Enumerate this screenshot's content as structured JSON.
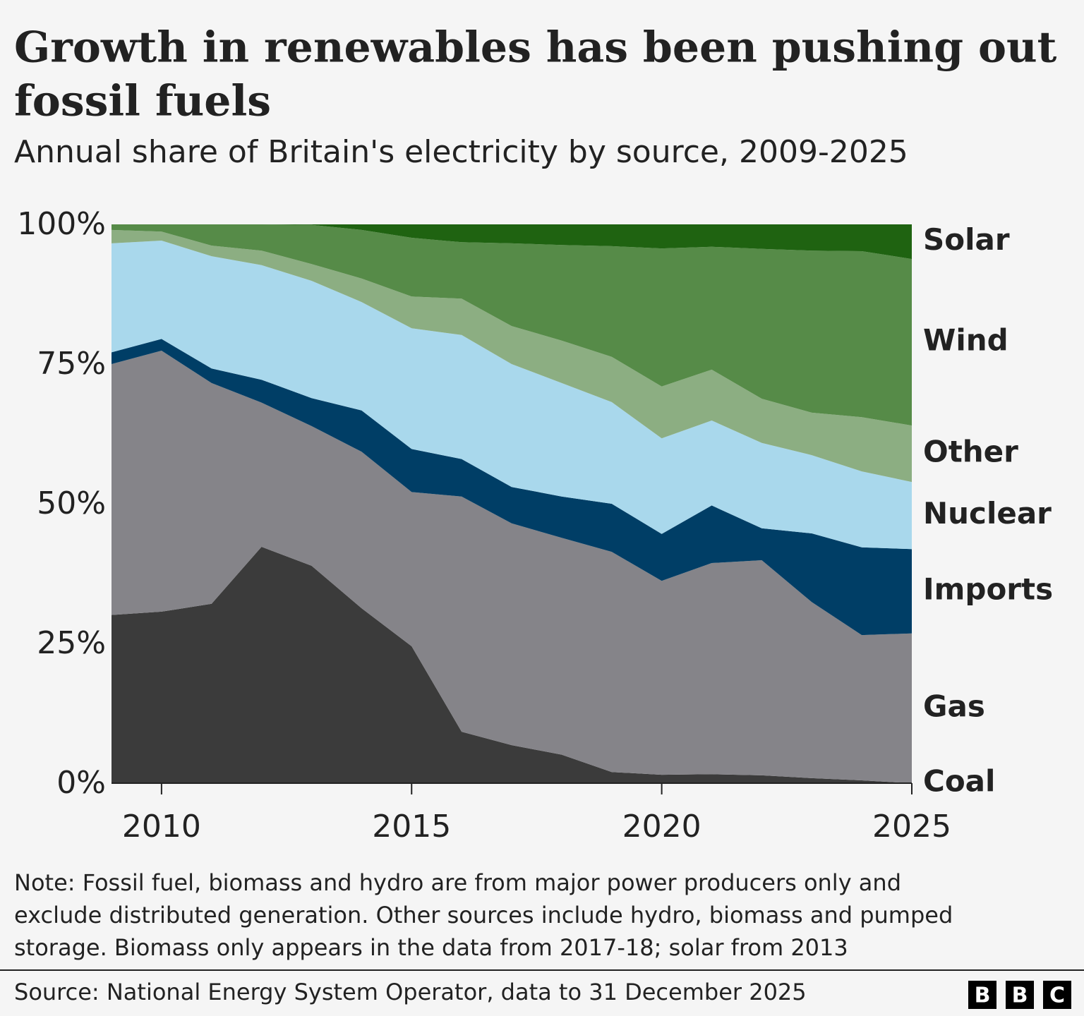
{
  "chart_data": {
    "type": "stacked_area",
    "title": [
      "Growth in renewables has been pushing out",
      "fossil fuels"
    ],
    "subtitle": "Annual share of Britain's electricity by source, 2009-2025",
    "x": [
      2009,
      2010,
      2011,
      2012,
      2013,
      2014,
      2015,
      2016,
      2017,
      2018,
      2019,
      2020,
      2021,
      2022,
      2023,
      2024,
      2025
    ],
    "xlim": [
      2009,
      2025
    ],
    "xticks": [
      2010,
      2015,
      2020,
      2025
    ],
    "ylim": [
      0,
      100
    ],
    "yticks": [
      {
        "value": 0,
        "label": "0%"
      },
      {
        "value": 25,
        "label": "25%"
      },
      {
        "value": 50,
        "label": "50%"
      },
      {
        "value": 75,
        "label": "75%"
      },
      {
        "value": 100,
        "label": "100%"
      }
    ],
    "series": [
      {
        "name": "Coal",
        "color": "#3b3b3b",
        "values": [
          30.1,
          30.7,
          32.1,
          42.3,
          38.9,
          31.3,
          24.5,
          9.2,
          6.8,
          5.1,
          2.0,
          1.5,
          1.6,
          1.4,
          0.9,
          0.5,
          0
        ]
      },
      {
        "name": "Gas",
        "color": "#858489",
        "values": [
          44.9,
          46.7,
          39.5,
          25.8,
          25.0,
          28.0,
          27.6,
          42.1,
          39.7,
          38.8,
          39.4,
          34.7,
          37.8,
          38.5,
          31.5,
          26.0,
          26.8
        ]
      },
      {
        "name": "Imports",
        "color": "#003e66",
        "values": [
          2.1,
          2.1,
          2.6,
          4.1,
          5.0,
          7.4,
          7.7,
          6.7,
          6.5,
          7.4,
          8.6,
          8.4,
          10.3,
          5.7,
          12.3,
          15.7,
          15.1
        ]
      },
      {
        "name": "Nuclear",
        "color": "#a9d8ec",
        "values": [
          19.5,
          17.6,
          20.1,
          20.5,
          21.0,
          19.4,
          21.6,
          22.2,
          22.0,
          20.3,
          18.2,
          17.1,
          15.2,
          15.3,
          14.0,
          13.6,
          12.0
        ]
      },
      {
        "name": "Other",
        "color": "#8cae82",
        "values": [
          2.4,
          1.6,
          1.9,
          2.6,
          3.0,
          4.2,
          5.7,
          6.5,
          6.8,
          7.6,
          8.1,
          9.3,
          9.1,
          7.9,
          7.6,
          9.7,
          10.1
        ]
      },
      {
        "name": "Wind",
        "color": "#568b48",
        "values": [
          1.0,
          1.3,
          3.8,
          4.7,
          7.0,
          8.7,
          10.5,
          10.1,
          14.8,
          17.1,
          19.8,
          24.7,
          22.0,
          26.8,
          29.0,
          29.7,
          29.8
        ]
      },
      {
        "name": "Solar",
        "color": "#1f6311",
        "values": [
          0,
          0,
          0,
          0,
          0.1,
          1.0,
          2.4,
          3.2,
          3.4,
          3.7,
          3.9,
          4.3,
          4.0,
          4.4,
          4.7,
          4.8,
          6.2
        ]
      }
    ],
    "note": [
      "Note: Fossil fuel, biomass and hydro are from major power producers only and",
      "exclude distributed generation. Other sources include hydro, biomass and pumped",
      "storage. Biomass only appears in the data from 2017-18; solar from 2013"
    ],
    "source": "Source: National Energy System Operator, data to 31 December 2025",
    "logo": [
      "B",
      "B",
      "C"
    ]
  }
}
